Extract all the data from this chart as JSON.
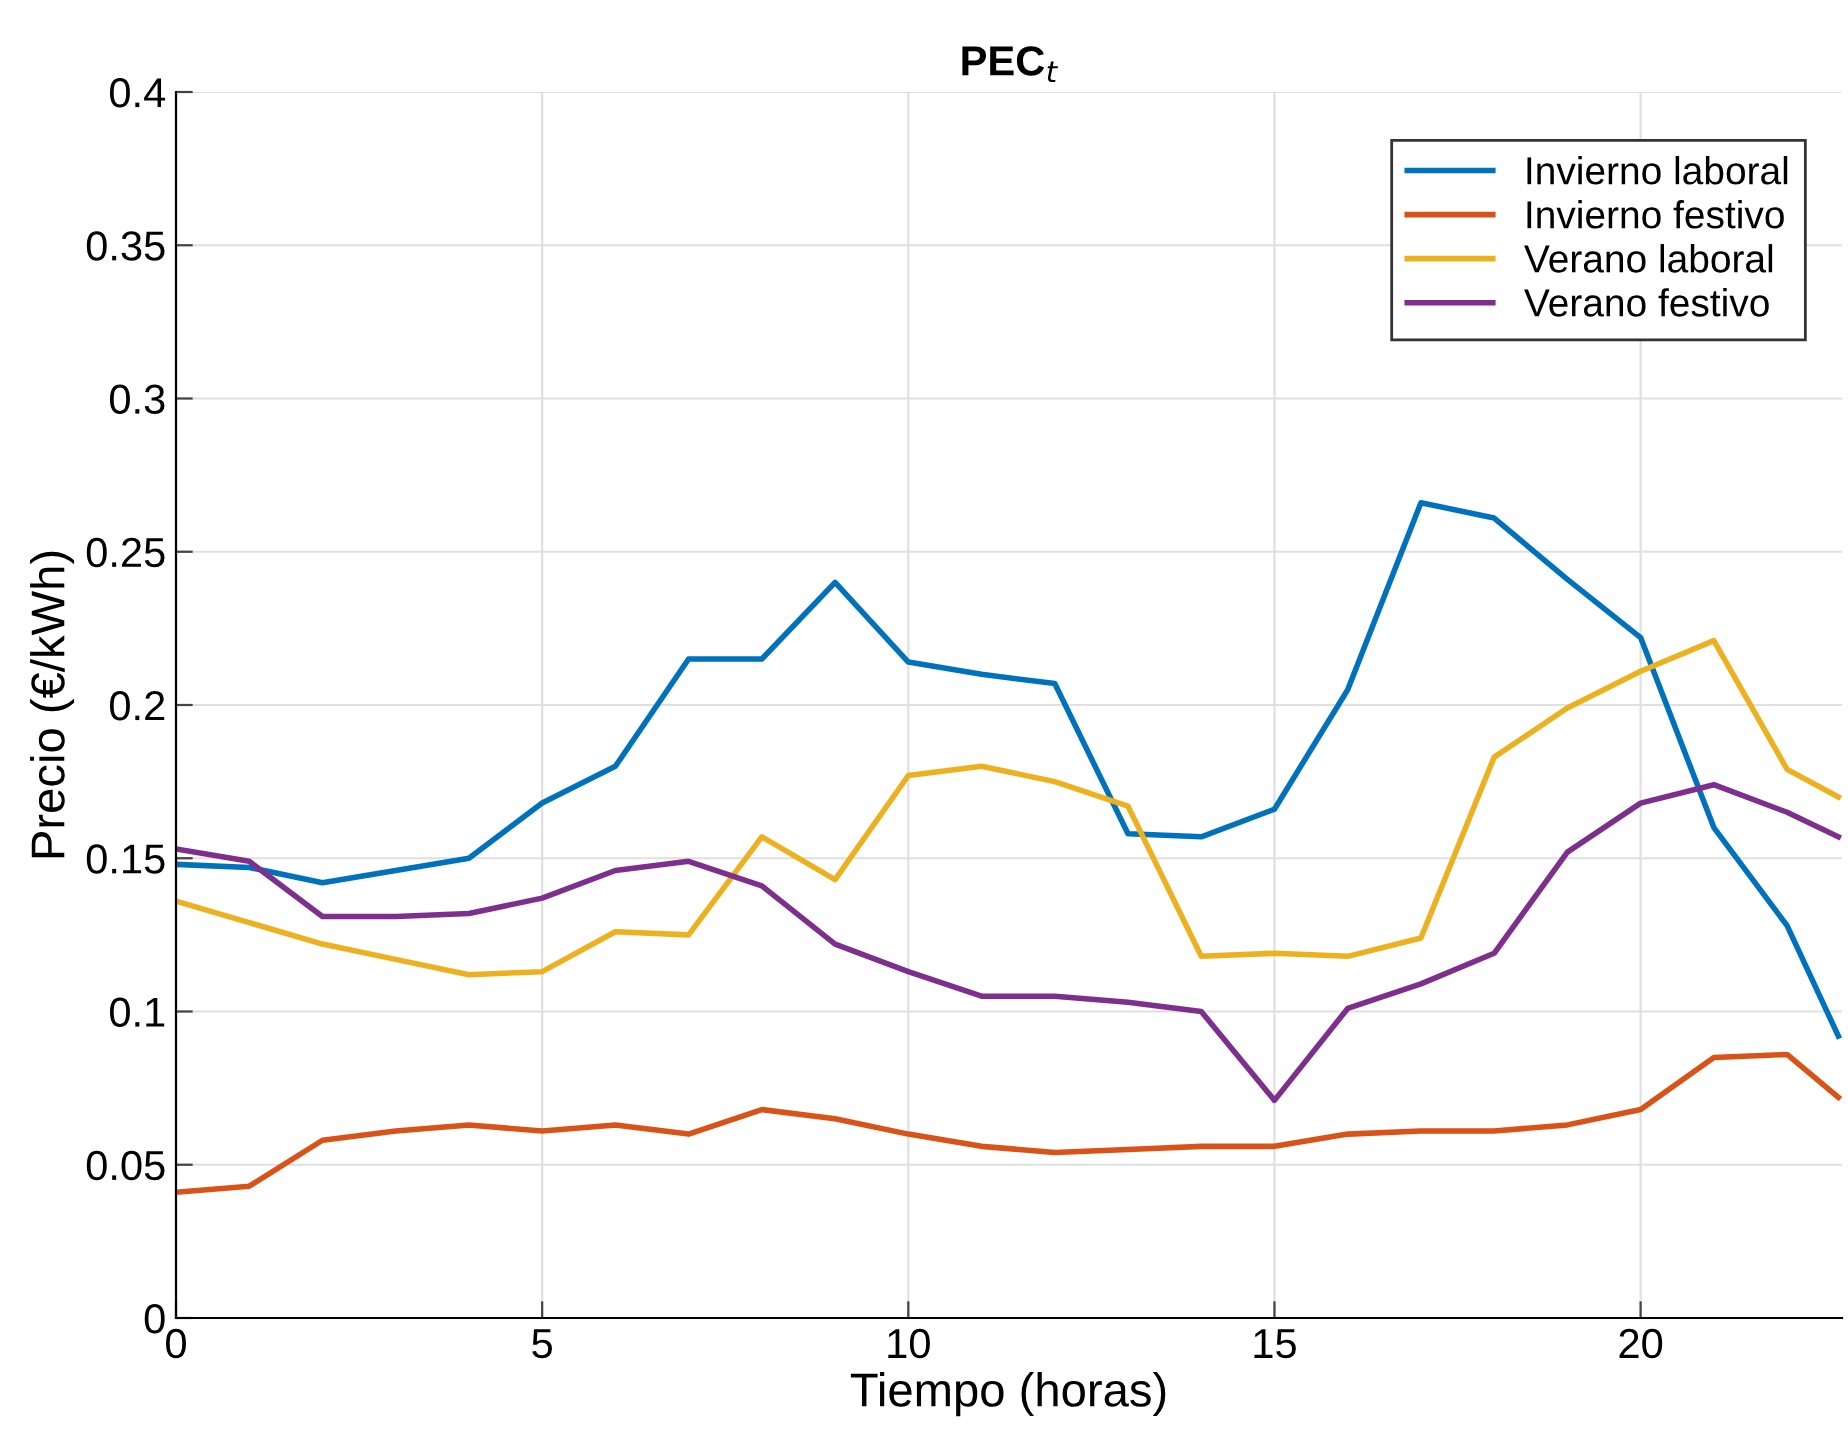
{
  "chart_data": {
    "type": "line",
    "title": "PEC$_{t}$",
    "xlabel": "Tiempo (horas)",
    "ylabel": "Precio (€/kWh)",
    "x": [
      0,
      1,
      2,
      3,
      4,
      5,
      6,
      7,
      8,
      9,
      10,
      11,
      12,
      13,
      14,
      15,
      16,
      17,
      18,
      19,
      20,
      21,
      22,
      22.7
    ],
    "series": [
      {
        "name": "Invierno laboral",
        "color": "#0072bd",
        "values": [
          0.148,
          0.147,
          0.142,
          0.146,
          0.15,
          0.168,
          0.18,
          0.215,
          0.215,
          0.24,
          0.214,
          0.21,
          0.207,
          0.158,
          0.157,
          0.166,
          0.205,
          0.266,
          0.261,
          0.241,
          0.222,
          0.16,
          0.128,
          0.092
        ]
      },
      {
        "name": "Invierno festivo",
        "color": "#d95319",
        "values": [
          0.041,
          0.043,
          0.058,
          0.061,
          0.063,
          0.061,
          0.063,
          0.06,
          0.068,
          0.065,
          0.06,
          0.056,
          0.054,
          0.055,
          0.056,
          0.056,
          0.06,
          0.061,
          0.061,
          0.063,
          0.068,
          0.085,
          0.086,
          0.072
        ]
      },
      {
        "name": "Verano laboral",
        "color": "#edb120",
        "values": [
          0.136,
          0.129,
          0.122,
          0.117,
          0.112,
          0.113,
          0.126,
          0.125,
          0.157,
          0.143,
          0.177,
          0.18,
          0.175,
          0.167,
          0.118,
          0.119,
          0.118,
          0.124,
          0.183,
          0.199,
          0.211,
          0.221,
          0.179,
          0.17
        ]
      },
      {
        "name": "Verano festivo",
        "color": "#7e2f8e",
        "values": [
          0.153,
          0.149,
          0.131,
          0.131,
          0.132,
          0.137,
          0.146,
          0.149,
          0.141,
          0.122,
          0.113,
          0.105,
          0.105,
          0.103,
          0.1,
          0.071,
          0.101,
          0.109,
          0.119,
          0.152,
          0.168,
          0.174,
          0.165,
          0.157
        ]
      }
    ],
    "xlim": [
      0,
      22.75
    ],
    "xticks": [
      0,
      5,
      10,
      15,
      20
    ],
    "ylim": [
      0,
      0.4
    ],
    "yticks": [
      0,
      0.05,
      0.1,
      0.15,
      0.2,
      0.25,
      0.3,
      0.35,
      0.4
    ],
    "grid": true,
    "legend": "top right",
    "marker": "none",
    "line_style": "solid"
  }
}
